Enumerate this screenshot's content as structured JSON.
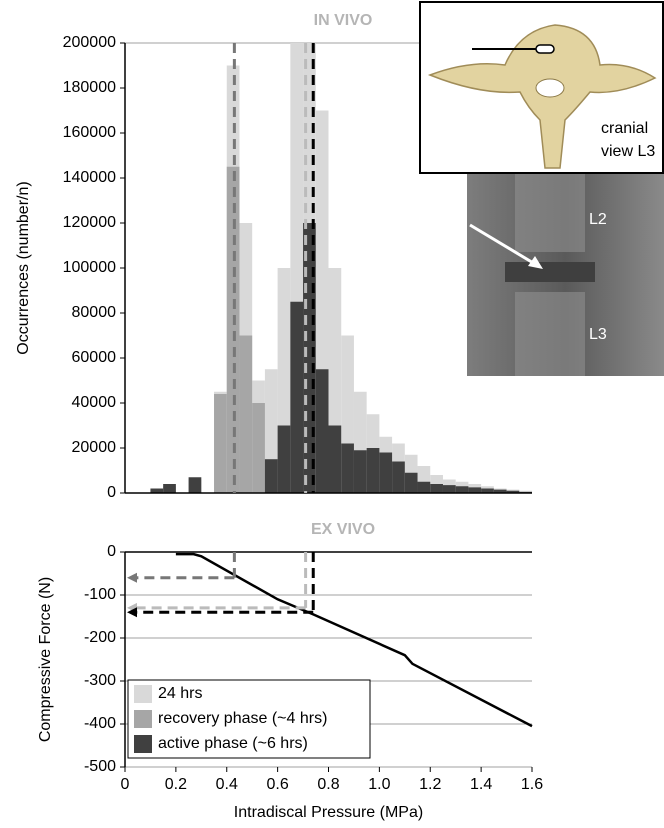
{
  "chart_data": [
    {
      "type": "histogram",
      "title": "IN VIVO",
      "ylabel": "Occurrences (number/n)",
      "xlim": [
        0,
        1.6
      ],
      "ylim": [
        0,
        200000
      ],
      "yticks": [
        0,
        20000,
        40000,
        60000,
        80000,
        100000,
        120000,
        140000,
        160000,
        180000,
        200000
      ],
      "grid": false,
      "legend": "lower left",
      "bins": [
        0,
        0.05,
        0.1,
        0.15,
        0.2,
        0.25,
        0.3,
        0.35,
        0.4,
        0.45,
        0.5,
        0.55,
        0.6,
        0.65,
        0.7,
        0.75,
        0.8,
        0.85,
        0.9,
        0.95,
        1.0,
        1.05,
        1.1,
        1.15,
        1.2,
        1.25,
        1.3,
        1.35,
        1.4,
        1.45,
        1.5,
        1.55,
        1.6
      ],
      "series": [
        {
          "name": "24 hrs",
          "color": "#d9d9d9",
          "values": [
            0,
            0,
            1000,
            3000,
            0,
            6000,
            0,
            45000,
            190000,
            120000,
            50000,
            55000,
            100000,
            200000,
            200000,
            170000,
            100000,
            70000,
            45000,
            35000,
            25000,
            22000,
            17000,
            12000,
            8000,
            6000,
            5000,
            4000,
            3000,
            2000,
            1500,
            1000
          ]
        },
        {
          "name": "recovery phase (~4 hrs)",
          "color": "#a6a6a6",
          "values": [
            0,
            0,
            0,
            0,
            0,
            0,
            0,
            44000,
            145000,
            70000,
            40000,
            15000,
            0,
            0,
            0,
            0,
            0,
            0,
            0,
            0,
            0,
            0,
            0,
            0,
            0,
            0,
            0,
            0,
            0,
            0,
            0,
            0
          ]
        },
        {
          "name": "active phase (~6 hrs)",
          "color": "#404040",
          "values": [
            0,
            0,
            2000,
            4000,
            0,
            7000,
            0,
            0,
            0,
            0,
            0,
            15000,
            30000,
            85000,
            120000,
            55000,
            30000,
            22000,
            19000,
            20000,
            18000,
            14000,
            9000,
            5000,
            4000,
            3500,
            3000,
            2500,
            2000,
            1500,
            1000,
            500
          ]
        }
      ]
    },
    {
      "type": "line",
      "title": "EX VIVO",
      "xlabel": "Intradiscal Pressure (MPa)",
      "ylabel": "Compressive Force (N)",
      "xlim": [
        0,
        1.6
      ],
      "ylim": [
        -500,
        0
      ],
      "xticks": [
        0,
        0.2,
        0.4,
        0.6,
        0.8,
        {
          "value": 1,
          "label": "1.0"
        },
        1.2,
        1.4,
        1.6
      ],
      "yticks": [
        -500,
        -400,
        -300,
        -200,
        -100,
        0
      ],
      "grid": true,
      "color": "#000000",
      "x": [
        0.2,
        0.27,
        0.3,
        0.6,
        0.74,
        1.1,
        1.13,
        1.6
      ],
      "values": [
        -5,
        -5,
        -10,
        -110,
        -145,
        -240,
        -260,
        -405
      ],
      "reference_lines": [
        {
          "x": 0.43,
          "y": -60,
          "color": "#777777"
        },
        {
          "x": 0.71,
          "y": -130,
          "color": "#bbbbbb"
        },
        {
          "x": 0.74,
          "y": -140,
          "color": "#000000"
        }
      ]
    }
  ],
  "inset_photo": {
    "caption": [
      "cranial",
      "view L3"
    ]
  },
  "inset_xray": {
    "labels": [
      "L2",
      "L3"
    ]
  }
}
